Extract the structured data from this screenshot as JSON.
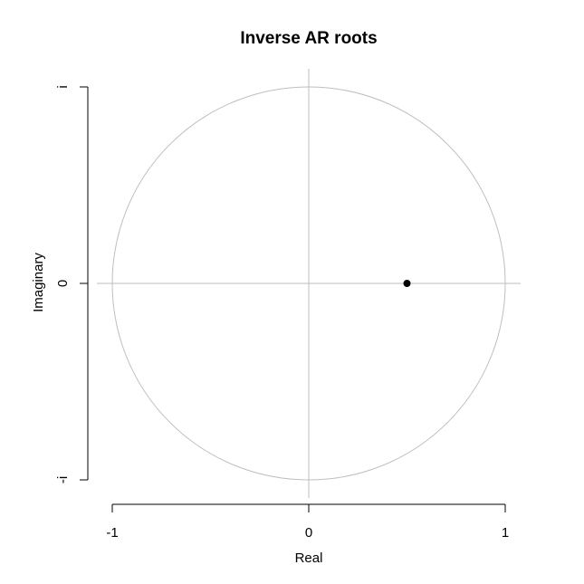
{
  "chart_data": {
    "type": "scatter",
    "title": "Inverse AR roots",
    "xlabel": "Real",
    "ylabel": "Imaginary",
    "xlim": [
      -1,
      1
    ],
    "ylim": [
      -1,
      1
    ],
    "x_ticks": [
      {
        "value": -1,
        "label": "-1"
      },
      {
        "value": 0,
        "label": "0"
      },
      {
        "value": 1,
        "label": "1"
      }
    ],
    "y_ticks": [
      {
        "value": -1,
        "label": "-i"
      },
      {
        "value": 0,
        "label": "0"
      },
      {
        "value": 1,
        "label": "i"
      }
    ],
    "unit_circle": true,
    "reference_lines": {
      "x": 0,
      "y": 0
    },
    "points": [
      {
        "x": 0.5,
        "y": 0.0
      }
    ],
    "colors": {
      "circle": "#bebebe",
      "reference_lines": "#bebebe",
      "point": "#000000",
      "axis": "#000000"
    }
  }
}
